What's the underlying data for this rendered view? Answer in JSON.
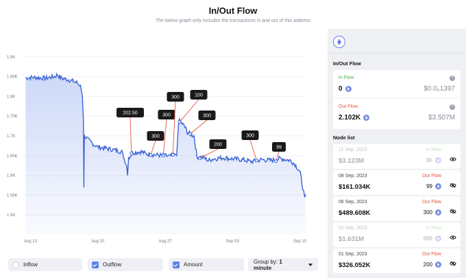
{
  "header": {
    "title": "In/Out Flow",
    "subtitle": "The below graph only includes the transactions in and out of this address"
  },
  "chart_data": {
    "type": "line",
    "ylim": [
      1450,
      1950
    ],
    "y_ticks": [
      1500,
      1550,
      1600,
      1650,
      1700,
      1750,
      1800,
      1850,
      1900
    ],
    "y_tick_labels": [
      "1.5K",
      "1.55K",
      "1.6K",
      "1.65K",
      "1.7K",
      "1.75K",
      "1.8K",
      "1.85K",
      "1.9K"
    ],
    "x_range": [
      12.4,
      41.6
    ],
    "x_ticks": [
      13,
      20,
      27,
      34,
      41
    ],
    "x_tick_labels": [
      "Aug 13",
      "Aug 20",
      "Aug 27",
      "Sep 03",
      "Sep 10"
    ],
    "series": [
      {
        "points": [
          [
            12.5,
            1847
          ],
          [
            13.5,
            1848
          ],
          [
            14.5,
            1846
          ],
          [
            15.5,
            1850
          ],
          [
            15.8,
            1855
          ],
          [
            16.2,
            1846
          ],
          [
            17.0,
            1842
          ],
          [
            17.8,
            1835
          ],
          [
            18.2,
            1828
          ],
          [
            18.4,
            1800
          ],
          [
            18.5,
            1740
          ],
          [
            18.55,
            1570
          ],
          [
            18.6,
            1700
          ],
          [
            19.0,
            1690
          ],
          [
            19.5,
            1680
          ],
          [
            20.0,
            1672
          ],
          [
            21.0,
            1668
          ],
          [
            22.0,
            1663
          ],
          [
            22.5,
            1660
          ],
          [
            23.0,
            1625
          ],
          [
            23.1,
            1600
          ],
          [
            23.2,
            1645
          ],
          [
            23.7,
            1658
          ],
          [
            24.5,
            1660
          ],
          [
            25.0,
            1655
          ],
          [
            26.0,
            1652
          ],
          [
            27.0,
            1650
          ],
          [
            27.5,
            1648
          ],
          [
            28.0,
            1655
          ],
          [
            28.2,
            1650
          ],
          [
            28.4,
            1740
          ],
          [
            28.6,
            1735
          ],
          [
            29.0,
            1725
          ],
          [
            29.3,
            1710
          ],
          [
            29.6,
            1705
          ],
          [
            30.0,
            1700
          ],
          [
            30.3,
            1648
          ],
          [
            31.0,
            1645
          ],
          [
            31.5,
            1638
          ],
          [
            32.0,
            1642
          ],
          [
            33.0,
            1645
          ],
          [
            34.0,
            1642
          ],
          [
            35.0,
            1640
          ],
          [
            36.0,
            1635
          ],
          [
            37.0,
            1640
          ],
          [
            38.0,
            1638
          ],
          [
            39.0,
            1643
          ],
          [
            40.0,
            1638
          ],
          [
            40.5,
            1628
          ],
          [
            41.0,
            1610
          ],
          [
            41.3,
            1570
          ],
          [
            41.5,
            1545
          ],
          [
            41.6,
            1552
          ]
        ]
      }
    ],
    "annotations": [
      {
        "label": "202.50",
        "x": 23.5,
        "y": 1656
      },
      {
        "label": "300",
        "x": 25.5,
        "y": 1652
      },
      {
        "label": "300",
        "x": 26.8,
        "y": 1650
      },
      {
        "label": "300",
        "x": 27.8,
        "y": 1652
      },
      {
        "label": "100",
        "x": 28.5,
        "y": 1735
      },
      {
        "label": "300",
        "x": 29.6,
        "y": 1705
      },
      {
        "label": "200",
        "x": 30.6,
        "y": 1643
      },
      {
        "label": "300",
        "x": 36.5,
        "y": 1638
      },
      {
        "label": "99",
        "x": 38.5,
        "y": 1636
      }
    ]
  },
  "controls": {
    "inflow_label": "Inflow",
    "outflow_label": "Outflow",
    "amount_label": "Amount",
    "groupby_label": "Group by:",
    "groupby_value": "1 minute"
  },
  "sidebar": {
    "section_flow": "In/Out Flow",
    "in_flow": {
      "label": "In Flow",
      "value": "0",
      "usd": "$0.0₅1397",
      "help": "?"
    },
    "out_flow": {
      "label": "Out Flow",
      "value": "2.102K",
      "usd": "$3.507M",
      "help": "?"
    },
    "section_nodes": "Node list",
    "nodes": [
      {
        "date": "11 Sep, 2023",
        "amount": "$3.123M",
        "direction": "In Flow",
        "num": "3K",
        "faded": true,
        "dir": "in",
        "eye": "open"
      },
      {
        "date": "08 Sep, 2023",
        "amount": "$161.034K",
        "direction": "Out Flow",
        "num": "99",
        "faded": false,
        "dir": "out",
        "eye": "slash"
      },
      {
        "date": "06 Sep, 2023",
        "amount": "$489.608K",
        "direction": "Out Flow",
        "num": "300",
        "faded": false,
        "dir": "out",
        "eye": "slash"
      },
      {
        "date": "02 Sep, 2023",
        "amount": "$1.631M",
        "direction": "In Flow",
        "num": "999",
        "faded": true,
        "dir": "in",
        "eye": "open"
      },
      {
        "date": "01 Sep, 2023",
        "amount": "$326.052K",
        "direction": "Out Flow",
        "num": "200",
        "faded": false,
        "dir": "out",
        "eye": "slash"
      }
    ]
  },
  "colors": {
    "line": "#3b63d6",
    "fill_top": "#c7d4f7",
    "in_flow": "#4caf50",
    "out_flow": "#e5533d",
    "annotation_bg": "#1a1a1a",
    "annotation_line": "#e5533d"
  }
}
